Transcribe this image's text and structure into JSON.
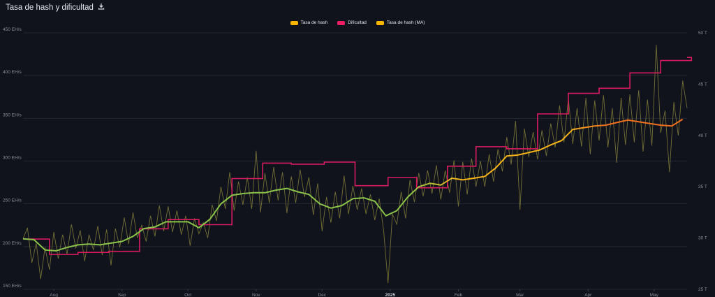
{
  "header": {
    "title": "Tasa de hash y dificultad",
    "download_icon": "download-icon"
  },
  "colors": {
    "background": "#11131c",
    "grid": "#232633",
    "hashrate_raw": "#7c7a3a",
    "difficulty": "#d81b60",
    "ma_start": "#8bc34a",
    "ma_mid": "#f5b31a",
    "ma_end": "#f07020"
  },
  "chart_data": {
    "type": "line",
    "title": "Tasa de hash y dificultad",
    "legend": [
      {
        "name": "Tasa de hash",
        "color": "#f7b500"
      },
      {
        "name": "Dificultad",
        "color": "#e91e63"
      },
      {
        "name": "Tasa de hash (MA)",
        "color": "#f7b500"
      }
    ],
    "legend_position": "top-center",
    "grid": true,
    "x_range": [
      "2024-07-18",
      "2025-05-16"
    ],
    "x_ticks": [
      {
        "date": "2024-08-01",
        "label": "Aug"
      },
      {
        "date": "2024-09-01",
        "label": "Sep"
      },
      {
        "date": "2024-10-01",
        "label": "Oct"
      },
      {
        "date": "2024-11-01",
        "label": "Nov"
      },
      {
        "date": "2024-12-01",
        "label": "Dec"
      },
      {
        "date": "2025-01-01",
        "label": "2025"
      },
      {
        "date": "2025-02-01",
        "label": "Feb"
      },
      {
        "date": "2025-03-01",
        "label": "Mar"
      },
      {
        "date": "2025-04-01",
        "label": "Apr"
      },
      {
        "date": "2025-05-01",
        "label": "May"
      }
    ],
    "y_left": {
      "unit": "EH/s",
      "range": [
        150,
        450
      ],
      "ticks": [
        "150 EH/s",
        "200 EH/s",
        "250 EH/s",
        "300 EH/s",
        "350 EH/s",
        "400 EH/s",
        "450 EH/s"
      ],
      "values": [
        150,
        200,
        250,
        300,
        350,
        400,
        450
      ]
    },
    "y_right": {
      "unit": "T",
      "range": [
        25,
        50
      ],
      "ticks": [
        "25 T",
        "30 T",
        "35 T",
        "40 T",
        "45 T",
        "50 T"
      ],
      "values": [
        25,
        30,
        35,
        40,
        45,
        50
      ]
    },
    "series": [
      {
        "name": "Tasa de hash (MA)",
        "axis": "left",
        "points": [
          [
            "2024-07-18",
            209
          ],
          [
            "2024-07-23",
            208
          ],
          [
            "2024-07-28",
            196
          ],
          [
            "2024-08-02",
            195
          ],
          [
            "2024-08-07",
            199
          ],
          [
            "2024-08-12",
            202
          ],
          [
            "2024-08-17",
            203
          ],
          [
            "2024-08-22",
            202
          ],
          [
            "2024-08-27",
            204
          ],
          [
            "2024-09-01",
            206
          ],
          [
            "2024-09-06",
            212
          ],
          [
            "2024-09-11",
            221
          ],
          [
            "2024-09-16",
            223
          ],
          [
            "2024-09-21",
            229
          ],
          [
            "2024-09-26",
            229
          ],
          [
            "2024-10-01",
            229
          ],
          [
            "2024-10-06",
            222
          ],
          [
            "2024-10-11",
            232
          ],
          [
            "2024-10-16",
            250
          ],
          [
            "2024-10-21",
            260
          ],
          [
            "2024-10-26",
            262
          ],
          [
            "2024-10-31",
            263
          ],
          [
            "2024-11-05",
            263
          ],
          [
            "2024-11-10",
            266
          ],
          [
            "2024-11-15",
            268
          ],
          [
            "2024-11-20",
            264
          ],
          [
            "2024-11-25",
            261
          ],
          [
            "2024-11-30",
            250
          ],
          [
            "2024-12-05",
            245
          ],
          [
            "2024-12-10",
            248
          ],
          [
            "2024-12-15",
            256
          ],
          [
            "2024-12-20",
            257
          ],
          [
            "2024-12-25",
            253
          ],
          [
            "2024-12-30",
            236
          ],
          [
            "2025-01-04",
            242
          ],
          [
            "2025-01-09",
            258
          ],
          [
            "2025-01-14",
            270
          ],
          [
            "2025-01-19",
            274
          ],
          [
            "2025-01-24",
            272
          ],
          [
            "2025-01-29",
            280
          ],
          [
            "2025-02-03",
            278
          ],
          [
            "2025-02-08",
            280
          ],
          [
            "2025-02-13",
            282
          ],
          [
            "2025-02-18",
            292
          ],
          [
            "2025-02-23",
            306
          ],
          [
            "2025-02-28",
            307
          ],
          [
            "2025-03-05",
            310
          ],
          [
            "2025-03-10",
            313
          ],
          [
            "2025-03-15",
            319
          ],
          [
            "2025-03-20",
            324
          ],
          [
            "2025-03-25",
            337
          ],
          [
            "2025-03-30",
            339
          ],
          [
            "2025-04-04",
            341
          ],
          [
            "2025-04-09",
            342
          ],
          [
            "2025-04-14",
            345
          ],
          [
            "2025-04-19",
            348
          ],
          [
            "2025-04-24",
            346
          ],
          [
            "2025-04-29",
            344
          ],
          [
            "2025-05-04",
            342
          ],
          [
            "2025-05-09",
            341
          ],
          [
            "2025-05-14",
            349
          ]
        ]
      },
      {
        "name": "Dificultad",
        "axis": "right",
        "steps": [
          [
            "2024-07-18",
            29.9
          ],
          [
            "2024-07-30",
            28.4
          ],
          [
            "2024-08-12",
            28.6
          ],
          [
            "2024-08-26",
            28.7
          ],
          [
            "2024-09-09",
            30.9
          ],
          [
            "2024-09-22",
            31.8
          ],
          [
            "2024-10-06",
            31.3
          ],
          [
            "2024-10-21",
            35.8
          ],
          [
            "2024-11-04",
            37.3
          ],
          [
            "2024-11-17",
            37.2
          ],
          [
            "2024-12-02",
            37.4
          ],
          [
            "2024-12-16",
            35.1
          ],
          [
            "2024-12-31",
            35.9
          ],
          [
            "2025-01-13",
            34.9
          ],
          [
            "2025-01-27",
            37.0
          ],
          [
            "2025-02-09",
            38.9
          ],
          [
            "2025-02-23",
            38.7
          ],
          [
            "2025-03-09",
            42.1
          ],
          [
            "2025-03-23",
            44.1
          ],
          [
            "2025-04-06",
            44.6
          ],
          [
            "2025-04-20",
            46.1
          ],
          [
            "2025-05-04",
            47.3
          ],
          [
            "2025-05-18",
            47.6
          ]
        ]
      },
      {
        "name": "Tasa de hash",
        "axis": "left",
        "points": [
          [
            "2024-07-18",
            209
          ],
          [
            "2024-07-20",
            222
          ],
          [
            "2024-07-22",
            181
          ],
          [
            "2024-07-24",
            204
          ],
          [
            "2024-07-26",
            162
          ],
          [
            "2024-07-28",
            199
          ],
          [
            "2024-07-30",
            173
          ],
          [
            "2024-08-01",
            217
          ],
          [
            "2024-08-03",
            186
          ],
          [
            "2024-08-05",
            214
          ],
          [
            "2024-08-07",
            191
          ],
          [
            "2024-08-09",
            226
          ],
          [
            "2024-08-11",
            198
          ],
          [
            "2024-08-13",
            219
          ],
          [
            "2024-08-15",
            183
          ],
          [
            "2024-08-17",
            214
          ],
          [
            "2024-08-19",
            196
          ],
          [
            "2024-08-21",
            224
          ],
          [
            "2024-08-23",
            190
          ],
          [
            "2024-08-25",
            220
          ],
          [
            "2024-08-27",
            178
          ],
          [
            "2024-08-29",
            221
          ],
          [
            "2024-08-31",
            199
          ],
          [
            "2024-09-02",
            234
          ],
          [
            "2024-09-04",
            203
          ],
          [
            "2024-09-06",
            240
          ],
          [
            "2024-09-08",
            210
          ],
          [
            "2024-09-10",
            225
          ],
          [
            "2024-09-12",
            206
          ],
          [
            "2024-09-14",
            236
          ],
          [
            "2024-09-16",
            212
          ],
          [
            "2024-09-18",
            248
          ],
          [
            "2024-09-20",
            218
          ],
          [
            "2024-09-22",
            247
          ],
          [
            "2024-09-24",
            217
          ],
          [
            "2024-09-26",
            242
          ],
          [
            "2024-09-28",
            214
          ],
          [
            "2024-09-30",
            236
          ],
          [
            "2024-10-02",
            201
          ],
          [
            "2024-10-04",
            233
          ],
          [
            "2024-10-06",
            215
          ],
          [
            "2024-10-08",
            228
          ],
          [
            "2024-10-10",
            210
          ],
          [
            "2024-10-12",
            249
          ],
          [
            "2024-10-14",
            230
          ],
          [
            "2024-10-16",
            270
          ],
          [
            "2024-10-18",
            244
          ],
          [
            "2024-10-20",
            287
          ],
          [
            "2024-10-22",
            242
          ],
          [
            "2024-10-24",
            276
          ],
          [
            "2024-10-26",
            249
          ],
          [
            "2024-10-28",
            281
          ],
          [
            "2024-10-30",
            244
          ],
          [
            "2024-11-01",
            312
          ],
          [
            "2024-11-03",
            240
          ],
          [
            "2024-11-05",
            286
          ],
          [
            "2024-11-07",
            251
          ],
          [
            "2024-11-09",
            293
          ],
          [
            "2024-11-11",
            254
          ],
          [
            "2024-11-13",
            287
          ],
          [
            "2024-11-15",
            239
          ],
          [
            "2024-11-17",
            282
          ],
          [
            "2024-11-19",
            251
          ],
          [
            "2024-11-21",
            290
          ],
          [
            "2024-11-23",
            258
          ],
          [
            "2024-11-25",
            281
          ],
          [
            "2024-11-27",
            237
          ],
          [
            "2024-11-29",
            274
          ],
          [
            "2024-12-01",
            218
          ],
          [
            "2024-12-03",
            258
          ],
          [
            "2024-12-05",
            228
          ],
          [
            "2024-12-07",
            264
          ],
          [
            "2024-12-09",
            233
          ],
          [
            "2024-12-11",
            283
          ],
          [
            "2024-12-13",
            238
          ],
          [
            "2024-12-15",
            271
          ],
          [
            "2024-12-17",
            243
          ],
          [
            "2024-12-19",
            268
          ],
          [
            "2024-12-21",
            238
          ],
          [
            "2024-12-23",
            261
          ],
          [
            "2024-12-25",
            231
          ],
          [
            "2024-12-27",
            256
          ],
          [
            "2024-12-29",
            219
          ],
          [
            "2024-12-31",
            157
          ],
          [
            "2025-01-02",
            238
          ],
          [
            "2025-01-04",
            226
          ],
          [
            "2025-01-06",
            264
          ],
          [
            "2025-01-08",
            233
          ],
          [
            "2025-01-10",
            278
          ],
          [
            "2025-01-12",
            252
          ],
          [
            "2025-01-14",
            286
          ],
          [
            "2025-01-16",
            259
          ],
          [
            "2025-01-18",
            289
          ],
          [
            "2025-01-20",
            262
          ],
          [
            "2025-01-22",
            295
          ],
          [
            "2025-01-24",
            255
          ],
          [
            "2025-01-26",
            289
          ],
          [
            "2025-01-28",
            263
          ],
          [
            "2025-01-30",
            301
          ],
          [
            "2025-02-01",
            247
          ],
          [
            "2025-02-03",
            299
          ],
          [
            "2025-02-05",
            261
          ],
          [
            "2025-02-07",
            303
          ],
          [
            "2025-02-09",
            270
          ],
          [
            "2025-02-11",
            300
          ],
          [
            "2025-02-13",
            270
          ],
          [
            "2025-02-15",
            308
          ],
          [
            "2025-02-17",
            276
          ],
          [
            "2025-02-19",
            314
          ],
          [
            "2025-02-21",
            288
          ],
          [
            "2025-02-23",
            328
          ],
          [
            "2025-02-25",
            296
          ],
          [
            "2025-02-27",
            347
          ],
          [
            "2025-03-01",
            243
          ],
          [
            "2025-03-03",
            338
          ],
          [
            "2025-03-05",
            305
          ],
          [
            "2025-03-07",
            334
          ],
          [
            "2025-03-09",
            302
          ],
          [
            "2025-03-11",
            336
          ],
          [
            "2025-03-13",
            306
          ],
          [
            "2025-03-15",
            344
          ],
          [
            "2025-03-17",
            316
          ],
          [
            "2025-03-19",
            365
          ],
          [
            "2025-03-21",
            322
          ],
          [
            "2025-03-23",
            373
          ],
          [
            "2025-03-25",
            320
          ],
          [
            "2025-03-27",
            362
          ],
          [
            "2025-03-29",
            317
          ],
          [
            "2025-03-31",
            374
          ],
          [
            "2025-04-02",
            308
          ],
          [
            "2025-04-04",
            371
          ],
          [
            "2025-04-06",
            324
          ],
          [
            "2025-04-08",
            377
          ],
          [
            "2025-04-10",
            316
          ],
          [
            "2025-04-12",
            362
          ],
          [
            "2025-04-14",
            298
          ],
          [
            "2025-04-16",
            374
          ],
          [
            "2025-04-18",
            319
          ],
          [
            "2025-04-20",
            378
          ],
          [
            "2025-04-22",
            322
          ],
          [
            "2025-04-24",
            383
          ],
          [
            "2025-04-26",
            311
          ],
          [
            "2025-04-28",
            372
          ],
          [
            "2025-04-30",
            318
          ],
          [
            "2025-05-02",
            436
          ],
          [
            "2025-05-04",
            333
          ],
          [
            "2025-05-06",
            359
          ],
          [
            "2025-05-08",
            287
          ],
          [
            "2025-05-10",
            369
          ],
          [
            "2025-05-12",
            330
          ],
          [
            "2025-05-14",
            394
          ],
          [
            "2025-05-16",
            362
          ]
        ]
      }
    ]
  }
}
